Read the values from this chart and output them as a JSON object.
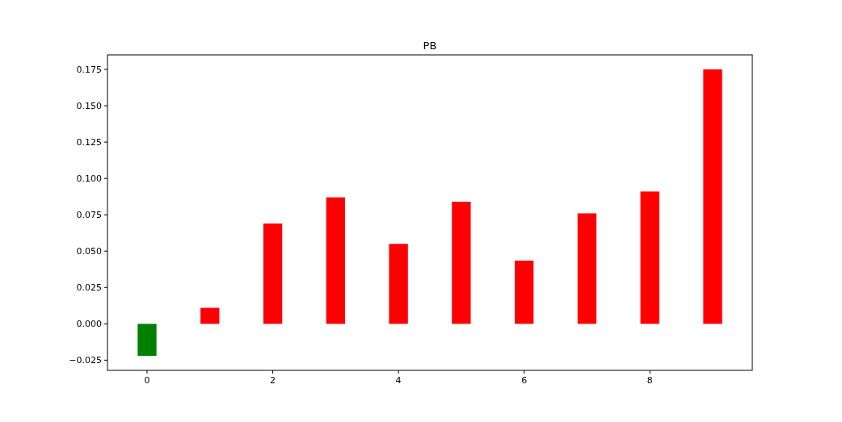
{
  "chart_data": {
    "type": "bar",
    "title": "PB",
    "x": [
      0,
      1,
      2,
      3,
      4,
      5,
      6,
      7,
      8,
      9
    ],
    "values": [
      -0.022,
      0.011,
      0.069,
      0.087,
      0.055,
      0.084,
      0.0435,
      0.076,
      0.091,
      0.175
    ],
    "colors": [
      "#008000",
      "#ff0000",
      "#ff0000",
      "#ff0000",
      "#ff0000",
      "#ff0000",
      "#ff0000",
      "#ff0000",
      "#ff0000",
      "#ff0000"
    ],
    "xlim": [
      -0.63,
      9.63
    ],
    "xticks": [
      0,
      2,
      4,
      6,
      8
    ],
    "ylim": [
      -0.032,
      0.185
    ],
    "yticks": [
      {
        "value": -0.025,
        "label": "−0.025"
      },
      {
        "value": 0,
        "label": "0.000"
      },
      {
        "value": 0.025,
        "label": "0.025"
      },
      {
        "value": 0.05,
        "label": "0.050"
      },
      {
        "value": 0.075,
        "label": "0.075"
      },
      {
        "value": 0.1,
        "label": "0.100"
      },
      {
        "value": 0.125,
        "label": "0.125"
      },
      {
        "value": 0.15,
        "label": "0.150"
      },
      {
        "value": 0.175,
        "label": "0.175"
      }
    ],
    "grid": false
  }
}
